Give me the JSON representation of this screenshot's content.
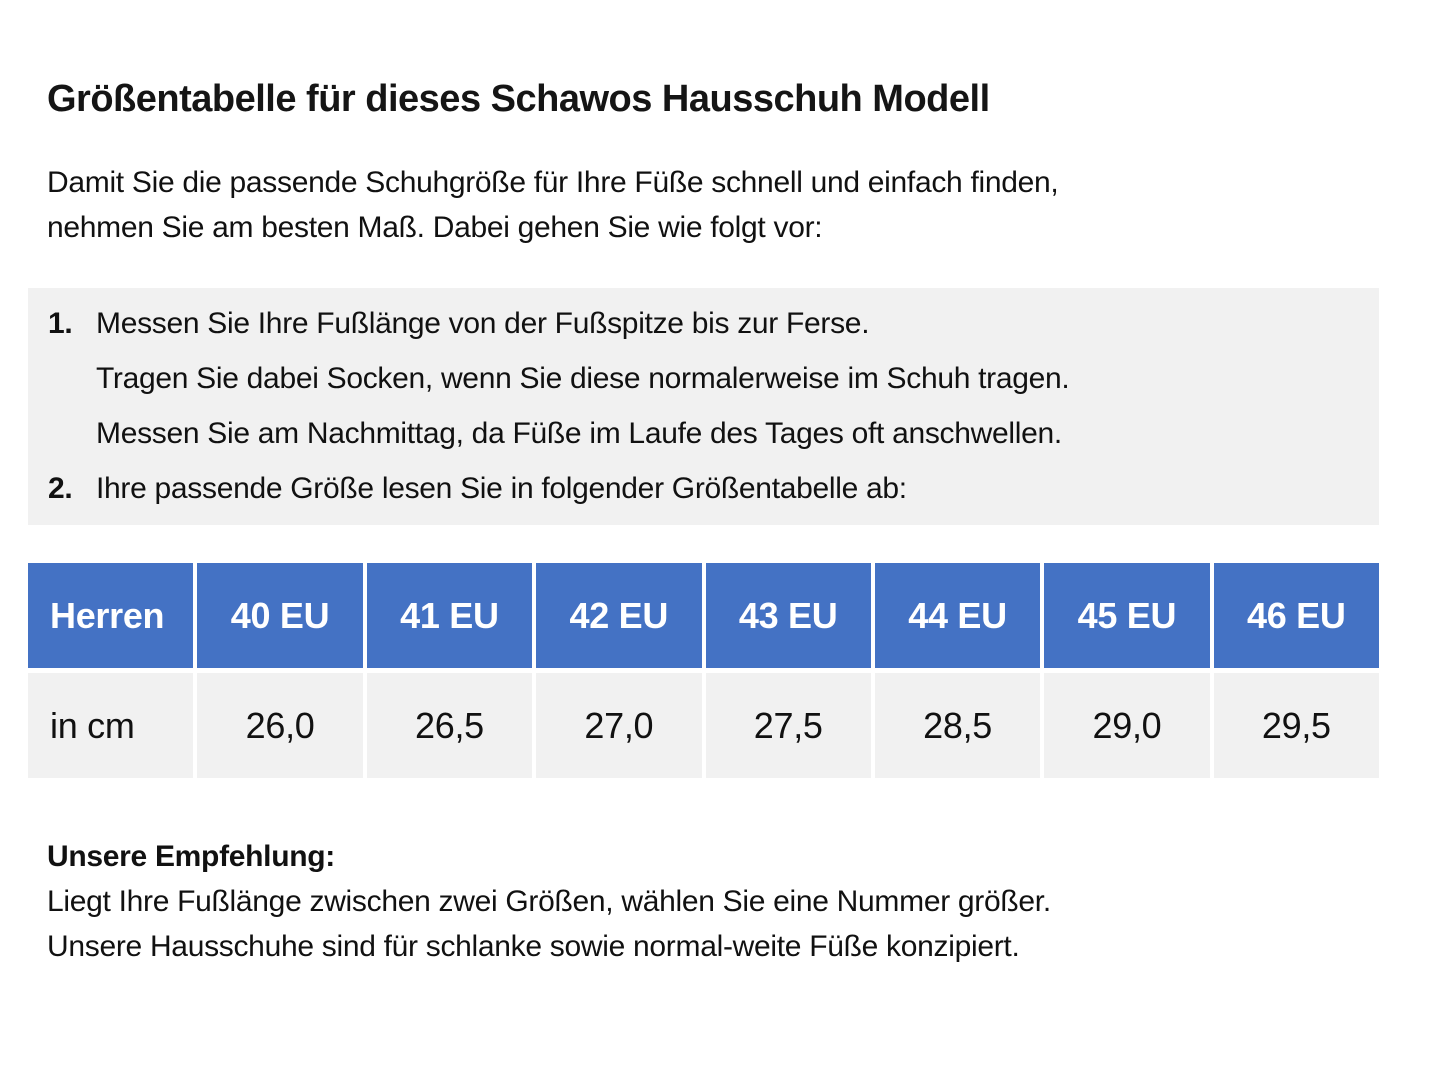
{
  "page": {
    "title": "Größentabelle für dieses Schawos Hausschuh Modell",
    "intro": {
      "line1": "Damit Sie die passende Schuhgröße für Ihre Füße schnell und einfach finden,",
      "line2": "nehmen Sie am besten Maß. Dabei gehen Sie wie folgt vor:"
    },
    "steps": [
      {
        "num": "1.",
        "text": "Messen Sie Ihre Fußlänge von der Fußspitze bis zur Ferse."
      },
      {
        "num": "",
        "text": "Tragen Sie dabei Socken, wenn Sie diese normalerweise im Schuh tragen."
      },
      {
        "num": "",
        "text": "Messen Sie am Nachmittag, da Füße im Laufe des Tages oft anschwellen."
      },
      {
        "num": "2.",
        "text": "Ihre passende Größe lesen Sie in folgender Größentabelle ab:"
      }
    ],
    "size_table": {
      "header": [
        "Herren",
        "40 EU",
        "41 EU",
        "42 EU",
        "43 EU",
        "44 EU",
        "45 EU",
        "46 EU"
      ],
      "row": [
        "in cm",
        "26,0",
        "26,5",
        "27,0",
        "27,5",
        "28,5",
        "29,0",
        "29,5"
      ]
    },
    "recommendation": {
      "heading": "Unsere Empfehlung:",
      "line1": "Liegt Ihre Fußlänge zwischen zwei Größen, wählen Sie eine Nummer größer.",
      "line2": "Unsere Hausschuhe sind für schlanke sowie normal-weite Füße konzipiert."
    },
    "colors": {
      "header_blue": "#4472C4",
      "light_gray": "#F1F1F1"
    }
  }
}
